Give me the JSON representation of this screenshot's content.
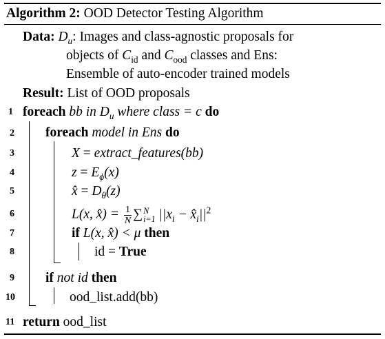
{
  "algorithm": {
    "label": "Algorithm 2:",
    "title": "OOD Detector Testing Algorithm"
  },
  "data_label": "Data:",
  "data_line1": ": Images and class-agnostic proposals for",
  "data_line2_a": "objects of",
  "data_line2_b": "and",
  "data_line2_c": "classes and Ens:",
  "data_line3": "Ensemble of auto-encoder trained models",
  "result_label": "Result:",
  "result_text": "List of OOD proposals",
  "line_numbers": [
    "1",
    "2",
    "3",
    "4",
    "5",
    "6",
    "7",
    "8",
    "9",
    "10",
    "11"
  ],
  "kw": {
    "foreach": "foreach",
    "do": "do",
    "if": "if",
    "then": "then",
    "return": "return",
    "true": "True"
  },
  "line1": {
    "a": "bb in",
    "b": "where class =",
    "c": "c"
  },
  "line2": {
    "a": "model in Ens"
  },
  "line3": {
    "lhs": "X",
    "fn": "extract_features",
    "arg": "(bb)"
  },
  "line4": {
    "lhs": "z",
    "rhs": "(x)"
  },
  "line5": {
    "lhs": "x̂",
    "rhs": "(z)"
  },
  "line6": {
    "lhs": "L(x, x̂) =",
    "frac_n": "1",
    "frac_d": "N",
    "sum_top": "N",
    "sum_bot": "i=1",
    "body": "||x",
    "body2": "− x̂",
    "tail": "||"
  },
  "line7": {
    "cond": "L(x, x̂) < μ"
  },
  "line8": {
    "lhs": "id ="
  },
  "line9": {
    "cond": "not id"
  },
  "line10": {
    "stmt": "ood_list.add(bb)"
  },
  "line11": {
    "stmt": "ood_list"
  }
}
